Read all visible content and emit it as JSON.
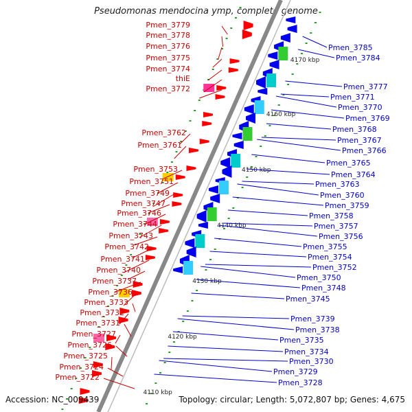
{
  "title": "Pseudomonas mendocina ymp, complete genome",
  "footer": {
    "accession": "Accession: NC_009439",
    "topology": "Topology: circular; Length: 5,072,807 bp; Genes: 4,675"
  },
  "ruler_ticks": [
    "4170 kbp",
    "4160 kbp",
    "4150 kbp",
    "4140 kbp",
    "4130 kbp",
    "4120 kbp",
    "4110 kbp"
  ],
  "left_labels": [
    "Pmen_3779",
    "Pmen_3778",
    "Pmen_3776",
    "Pmen_3775",
    "Pmen_3774",
    "thiE",
    "Pmen_3772",
    "Pmen_3762",
    "Pmen_3761",
    "Pmen_3753",
    "Pmen_3751",
    "Pmen_3749",
    "Pmen_3747",
    "Pmen_3746",
    "Pmen_3744",
    "Pmen_3743",
    "Pmen_3742",
    "Pmen_3741",
    "Pmen_3740",
    "Pmen_3737",
    "Pmen_3736",
    "Pmen_3733",
    "Pmen_3732",
    "Pmen_3731",
    "Pmen_3727",
    "Pmen_3726",
    "Pmen_3725",
    "Pmen_3724",
    "Pmen_3722"
  ],
  "right_labels": [
    "Pmen_3785",
    "Pmen_3784",
    "Pmen_3777",
    "Pmen_3771",
    "Pmen_3770",
    "Pmen_3769",
    "Pmen_3768",
    "Pmen_3767",
    "Pmen_3766",
    "Pmen_3765",
    "Pmen_3764",
    "Pmen_3763",
    "Pmen_3760",
    "Pmen_3759",
    "Pmen_3758",
    "Pmen_3757",
    "Pmen_3756",
    "Pmen_3755",
    "Pmen_3754",
    "Pmen_3752",
    "Pmen_3750",
    "Pmen_3748",
    "Pmen_3745",
    "Pmen_3739",
    "Pmen_3738",
    "Pmen_3735",
    "Pmen_3734",
    "Pmen_3730",
    "Pmen_3729",
    "Pmen_3728"
  ],
  "colors": {
    "left_label": "#cc0000",
    "right_label": "#0000cc",
    "forward_strand": "#ff0000",
    "reverse_strand": "#0000ee",
    "backbone": "#888888",
    "ruler_dots": "#2a9a2a"
  }
}
